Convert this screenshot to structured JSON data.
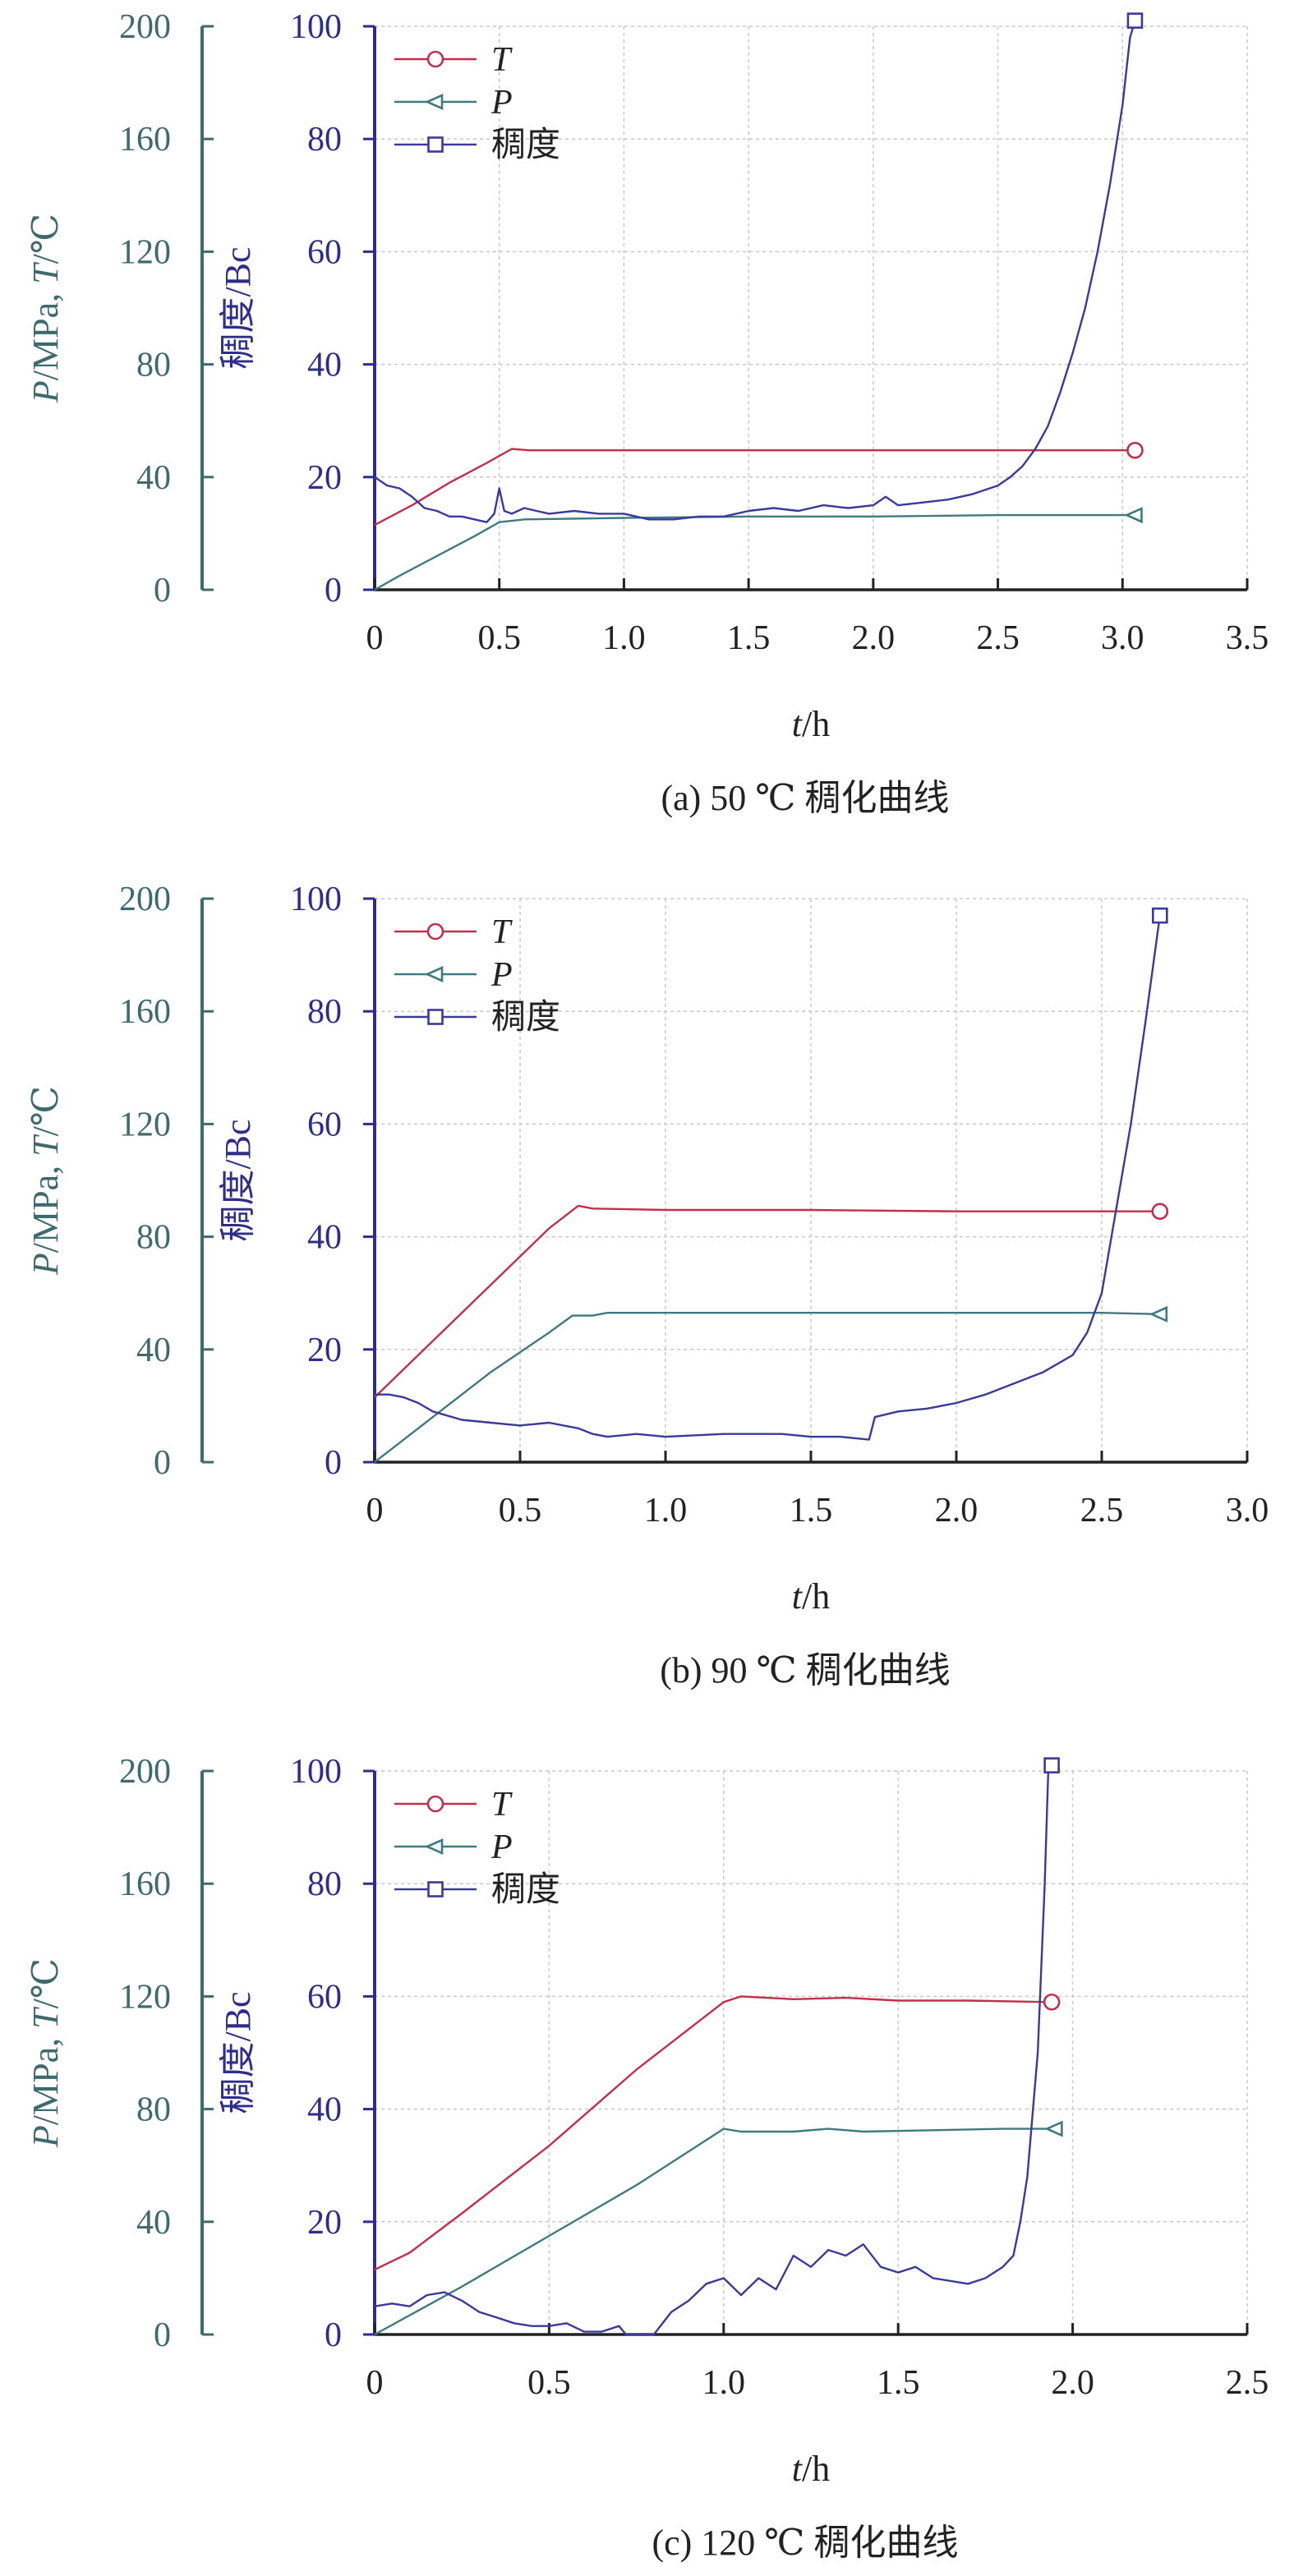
{
  "colors": {
    "T": "#c0304a",
    "P": "#3e7a7e",
    "consistency": "#3a3a9a",
    "left_axis": "#3e6a6e",
    "mid_axis": "#2e2e8a",
    "grid": "#c8c8c8",
    "frame": "#222222"
  },
  "chart_data": [
    {
      "type": "line",
      "caption": "(a) 50 ℃ 稠化曲线",
      "xlabel_italic": "t",
      "xlabel_unit": "/h",
      "ylabel_left": {
        "italic1": "P",
        "mid": "/MPa, ",
        "italic2": "T",
        "unit": "/℃"
      },
      "ylabel_mid": "稠度/Bc",
      "xlim": [
        0,
        3.5
      ],
      "xticks": [
        "0",
        "0.5",
        "1.0",
        "1.5",
        "2.0",
        "2.5",
        "3.0",
        "3.5"
      ],
      "ylim_left": [
        0,
        200
      ],
      "yticks_left": [
        "0",
        "40",
        "80",
        "120",
        "160",
        "200"
      ],
      "ylim_mid": [
        0,
        100
      ],
      "yticks_mid": [
        "0",
        "20",
        "40",
        "60",
        "80",
        "100"
      ],
      "legend": [
        {
          "label": "T",
          "italic": true,
          "marker": "circle"
        },
        {
          "label": "P",
          "italic": true,
          "marker": "triangle-left"
        },
        {
          "label": "稠度",
          "italic": false,
          "marker": "square"
        }
      ],
      "series": [
        {
          "key": "T",
          "axis": "left",
          "marker": "circle",
          "points": [
            [
              0,
              23
            ],
            [
              0.15,
              30
            ],
            [
              0.3,
              38
            ],
            [
              0.45,
              45
            ],
            [
              0.55,
              50
            ],
            [
              0.62,
              49.5
            ],
            [
              1.0,
              49.5
            ],
            [
              1.5,
              49.5
            ],
            [
              2.0,
              49.5
            ],
            [
              2.5,
              49.5
            ],
            [
              3.05,
              49.5
            ]
          ]
        },
        {
          "key": "P",
          "axis": "left",
          "marker": "triangle-left",
          "points": [
            [
              0,
              0
            ],
            [
              0.1,
              5
            ],
            [
              0.25,
              12
            ],
            [
              0.4,
              19
            ],
            [
              0.5,
              24
            ],
            [
              0.6,
              25
            ],
            [
              1.0,
              25.5
            ],
            [
              1.5,
              26
            ],
            [
              2.0,
              26
            ],
            [
              2.5,
              26.5
            ],
            [
              3.05,
              26.5
            ]
          ]
        },
        {
          "key": "稠度",
          "axis": "mid",
          "marker": "square",
          "points": [
            [
              0,
              20
            ],
            [
              0.05,
              18.5
            ],
            [
              0.1,
              18
            ],
            [
              0.15,
              16.5
            ],
            [
              0.2,
              14.5
            ],
            [
              0.25,
              14
            ],
            [
              0.3,
              13
            ],
            [
              0.35,
              13
            ],
            [
              0.4,
              12.5
            ],
            [
              0.45,
              12
            ],
            [
              0.48,
              13.5
            ],
            [
              0.5,
              18
            ],
            [
              0.52,
              14
            ],
            [
              0.55,
              13.5
            ],
            [
              0.6,
              14.5
            ],
            [
              0.65,
              14
            ],
            [
              0.7,
              13.5
            ],
            [
              0.8,
              14
            ],
            [
              0.9,
              13.5
            ],
            [
              1.0,
              13.5
            ],
            [
              1.1,
              12.5
            ],
            [
              1.2,
              12.5
            ],
            [
              1.3,
              13
            ],
            [
              1.4,
              13
            ],
            [
              1.5,
              14
            ],
            [
              1.6,
              14.5
            ],
            [
              1.7,
              14
            ],
            [
              1.8,
              15
            ],
            [
              1.9,
              14.5
            ],
            [
              2.0,
              15
            ],
            [
              2.05,
              16.5
            ],
            [
              2.1,
              15
            ],
            [
              2.2,
              15.5
            ],
            [
              2.3,
              16
            ],
            [
              2.4,
              17
            ],
            [
              2.5,
              18.5
            ],
            [
              2.55,
              20
            ],
            [
              2.6,
              22
            ],
            [
              2.65,
              25
            ],
            [
              2.7,
              29
            ],
            [
              2.75,
              35
            ],
            [
              2.8,
              42
            ],
            [
              2.85,
              50
            ],
            [
              2.9,
              60
            ],
            [
              2.95,
              72
            ],
            [
              3.0,
              86
            ],
            [
              3.03,
              98
            ],
            [
              3.05,
              101
            ]
          ]
        }
      ]
    },
    {
      "type": "line",
      "caption": "(b) 90 ℃ 稠化曲线",
      "xlabel_italic": "t",
      "xlabel_unit": "/h",
      "ylabel_left": {
        "italic1": "P",
        "mid": "/MPa, ",
        "italic2": "T",
        "unit": "/℃"
      },
      "ylabel_mid": "稠度/Bc",
      "xlim": [
        0,
        3.0
      ],
      "xticks": [
        "0",
        "0.5",
        "1.0",
        "1.5",
        "2.0",
        "2.5",
        "3.0"
      ],
      "ylim_left": [
        0,
        200
      ],
      "yticks_left": [
        "0",
        "40",
        "80",
        "120",
        "160",
        "200"
      ],
      "ylim_mid": [
        0,
        100
      ],
      "yticks_mid": [
        "0",
        "20",
        "40",
        "60",
        "80",
        "100"
      ],
      "legend": [
        {
          "label": "T",
          "italic": true,
          "marker": "circle"
        },
        {
          "label": "P",
          "italic": true,
          "marker": "triangle-left"
        },
        {
          "label": "稠度",
          "italic": false,
          "marker": "square"
        }
      ],
      "series": [
        {
          "key": "T",
          "axis": "left",
          "marker": "circle",
          "points": [
            [
              0,
              23
            ],
            [
              0.2,
              43
            ],
            [
              0.4,
              63
            ],
            [
              0.6,
              83
            ],
            [
              0.7,
              91
            ],
            [
              0.75,
              90
            ],
            [
              1.0,
              89.5
            ],
            [
              1.5,
              89.5
            ],
            [
              2.0,
              89
            ],
            [
              2.5,
              89
            ],
            [
              2.7,
              89
            ]
          ]
        },
        {
          "key": "P",
          "axis": "left",
          "marker": "triangle-left",
          "points": [
            [
              0,
              0
            ],
            [
              0.2,
              16
            ],
            [
              0.4,
              32
            ],
            [
              0.6,
              46
            ],
            [
              0.68,
              52
            ],
            [
              0.75,
              52
            ],
            [
              0.8,
              53
            ],
            [
              1.0,
              53
            ],
            [
              1.5,
              53
            ],
            [
              2.0,
              53
            ],
            [
              2.5,
              53
            ],
            [
              2.7,
              52.5
            ]
          ]
        },
        {
          "key": "稠度",
          "axis": "mid",
          "marker": "square",
          "points": [
            [
              0,
              12
            ],
            [
              0.05,
              12
            ],
            [
              0.1,
              11.5
            ],
            [
              0.15,
              10.5
            ],
            [
              0.2,
              9
            ],
            [
              0.3,
              7.5
            ],
            [
              0.4,
              7
            ],
            [
              0.5,
              6.5
            ],
            [
              0.6,
              7
            ],
            [
              0.65,
              6.5
            ],
            [
              0.7,
              6
            ],
            [
              0.75,
              5
            ],
            [
              0.8,
              4.5
            ],
            [
              0.9,
              5
            ],
            [
              1.0,
              4.5
            ],
            [
              1.2,
              5
            ],
            [
              1.4,
              5
            ],
            [
              1.5,
              4.5
            ],
            [
              1.6,
              4.5
            ],
            [
              1.7,
              4
            ],
            [
              1.72,
              8
            ],
            [
              1.8,
              9
            ],
            [
              1.9,
              9.5
            ],
            [
              2.0,
              10.5
            ],
            [
              2.1,
              12
            ],
            [
              2.2,
              14
            ],
            [
              2.3,
              16
            ],
            [
              2.4,
              19
            ],
            [
              2.45,
              23
            ],
            [
              2.5,
              30
            ],
            [
              2.55,
              45
            ],
            [
              2.6,
              60
            ],
            [
              2.65,
              78
            ],
            [
              2.7,
              97
            ]
          ]
        }
      ]
    },
    {
      "type": "line",
      "caption": "(c) 120 ℃ 稠化曲线",
      "xlabel_italic": "t",
      "xlabel_unit": "/h",
      "ylabel_left": {
        "italic1": "P",
        "mid": "/MPa, ",
        "italic2": "T",
        "unit": "/℃"
      },
      "ylabel_mid": "稠度/Bc",
      "xlim": [
        0,
        2.5
      ],
      "xticks": [
        "0",
        "0.5",
        "1.0",
        "1.5",
        "2.0",
        "2.5"
      ],
      "ylim_left": [
        0,
        200
      ],
      "yticks_left": [
        "0",
        "40",
        "80",
        "120",
        "160",
        "200"
      ],
      "ylim_mid": [
        0,
        100
      ],
      "yticks_mid": [
        "0",
        "20",
        "40",
        "60",
        "80",
        "100"
      ],
      "legend": [
        {
          "label": "T",
          "italic": true,
          "marker": "circle"
        },
        {
          "label": "P",
          "italic": true,
          "marker": "triangle-left"
        },
        {
          "label": "稠度",
          "italic": false,
          "marker": "square"
        }
      ],
      "series": [
        {
          "key": "T",
          "axis": "left",
          "marker": "circle",
          "points": [
            [
              0,
              23
            ],
            [
              0.1,
              29
            ],
            [
              0.25,
              43
            ],
            [
              0.5,
              67
            ],
            [
              0.75,
              94
            ],
            [
              1.0,
              118
            ],
            [
              1.05,
              120
            ],
            [
              1.2,
              119
            ],
            [
              1.35,
              119.5
            ],
            [
              1.5,
              118.5
            ],
            [
              1.7,
              118.5
            ],
            [
              1.94,
              118
            ]
          ]
        },
        {
          "key": "P",
          "axis": "left",
          "marker": "triangle-left",
          "points": [
            [
              0,
              0
            ],
            [
              0.25,
              17
            ],
            [
              0.5,
              35
            ],
            [
              0.75,
              53
            ],
            [
              1.0,
              73
            ],
            [
              1.05,
              72
            ],
            [
              1.2,
              72
            ],
            [
              1.3,
              73
            ],
            [
              1.4,
              72
            ],
            [
              1.6,
              72.5
            ],
            [
              1.8,
              73
            ],
            [
              1.95,
              73
            ]
          ]
        },
        {
          "key": "稠度",
          "axis": "mid",
          "marker": "square",
          "points": [
            [
              0,
              5
            ],
            [
              0.05,
              5.5
            ],
            [
              0.1,
              5
            ],
            [
              0.15,
              7
            ],
            [
              0.2,
              7.5
            ],
            [
              0.25,
              6
            ],
            [
              0.3,
              4
            ],
            [
              0.35,
              3
            ],
            [
              0.4,
              2
            ],
            [
              0.45,
              1.5
            ],
            [
              0.5,
              1.5
            ],
            [
              0.55,
              2
            ],
            [
              0.6,
              0.5
            ],
            [
              0.65,
              0.5
            ],
            [
              0.7,
              1.5
            ],
            [
              0.72,
              0
            ],
            [
              0.8,
              0
            ],
            [
              0.85,
              4
            ],
            [
              0.9,
              6
            ],
            [
              0.95,
              9
            ],
            [
              1.0,
              10
            ],
            [
              1.05,
              7
            ],
            [
              1.1,
              10
            ],
            [
              1.15,
              8
            ],
            [
              1.2,
              14
            ],
            [
              1.25,
              12
            ],
            [
              1.3,
              15
            ],
            [
              1.35,
              14
            ],
            [
              1.4,
              16
            ],
            [
              1.45,
              12
            ],
            [
              1.5,
              11
            ],
            [
              1.55,
              12
            ],
            [
              1.6,
              10
            ],
            [
              1.7,
              9
            ],
            [
              1.75,
              10
            ],
            [
              1.8,
              12
            ],
            [
              1.83,
              14
            ],
            [
              1.85,
              20
            ],
            [
              1.87,
              28
            ],
            [
              1.9,
              50
            ],
            [
              1.92,
              80
            ],
            [
              1.93,
              100
            ],
            [
              1.94,
              101
            ]
          ]
        }
      ]
    }
  ]
}
